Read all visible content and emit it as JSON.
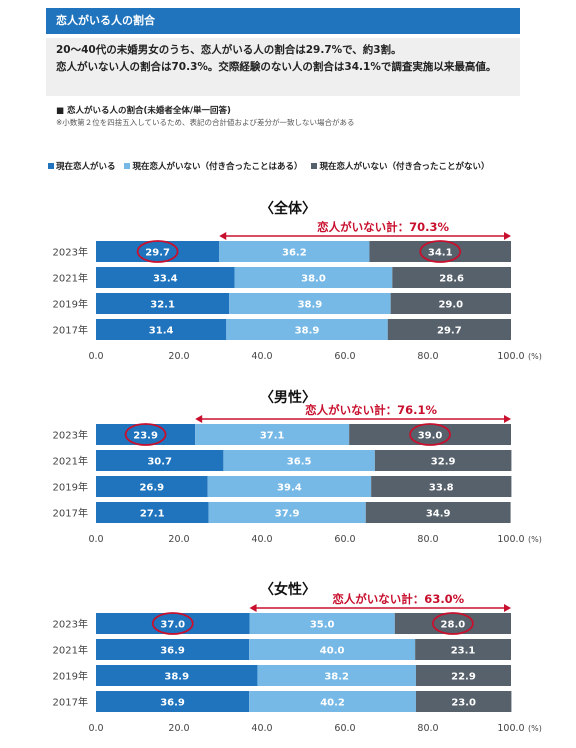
{
  "header": {
    "title": "恋人がいる人の割合"
  },
  "summary": {
    "line1": "20～40代の未婚男女のうち、恋人がいる人の割合は29.7%で、約3割。",
    "line2": "恋人がいない人の割合は70.3%。交際経験のない人の割合は34.1%で調査実施以来最高値。"
  },
  "chart_caption": "■ 恋人がいる人の割合(未婚者全体/単一回答)",
  "chart_note": "※小数第２位を四捨五入しているため、表記の合計値および差分が一致しない場合がある",
  "legend": [
    {
      "label": "現在恋人がいる",
      "color": "#1f74bd"
    },
    {
      "label": "現在恋人がいない（付き合ったことはある）",
      "color": "#77b9e6"
    },
    {
      "label": "現在恋人がいない（付き合ったことがない）",
      "color": "#56616b"
    }
  ],
  "colors": {
    "annotation": "#c8102e",
    "bar_label": "#ffffff"
  },
  "chart_data": [
    {
      "type": "bar",
      "orientation": "horizontal",
      "stacked": true,
      "title": "〈全体〉",
      "annotation": "恋人がいない計：70.3%",
      "categories": [
        "2023年",
        "2021年",
        "2019年",
        "2017年"
      ],
      "series": [
        {
          "name": "現在恋人がいる",
          "values": [
            29.7,
            33.4,
            32.1,
            31.4
          ]
        },
        {
          "name": "現在恋人がいない（付き合ったことはある）",
          "values": [
            36.2,
            38.0,
            38.9,
            38.9
          ]
        },
        {
          "name": "現在恋人がいない（付き合ったことがない）",
          "values": [
            34.1,
            28.6,
            29.0,
            29.7
          ]
        }
      ],
      "xlim": [
        0,
        100
      ],
      "xticks": [
        "0.0",
        "20.0",
        "40.0",
        "60.0",
        "80.0",
        "100.0"
      ],
      "xunit": "(%)",
      "highlighted": [
        "29.7",
        "34.1"
      ]
    },
    {
      "type": "bar",
      "orientation": "horizontal",
      "stacked": true,
      "title": "〈男性〉",
      "annotation": "恋人がいない計：76.1%",
      "categories": [
        "2023年",
        "2021年",
        "2019年",
        "2017年"
      ],
      "series": [
        {
          "name": "現在恋人がいる",
          "values": [
            23.9,
            30.7,
            26.9,
            27.1
          ]
        },
        {
          "name": "現在恋人がいない（付き合ったことはある）",
          "values": [
            37.1,
            36.5,
            39.4,
            37.9
          ]
        },
        {
          "name": "現在恋人がいない（付き合ったことがない）",
          "values": [
            39.0,
            32.9,
            33.8,
            34.9
          ]
        }
      ],
      "xlim": [
        0,
        100
      ],
      "xticks": [
        "0.0",
        "20.0",
        "40.0",
        "60.0",
        "80.0",
        "100.0"
      ],
      "xunit": "(%)",
      "highlighted": [
        "23.9",
        "39.0"
      ]
    },
    {
      "type": "bar",
      "orientation": "horizontal",
      "stacked": true,
      "title": "〈女性〉",
      "annotation": "恋人がいない計：63.0%",
      "categories": [
        "2023年",
        "2021年",
        "2019年",
        "2017年"
      ],
      "series": [
        {
          "name": "現在恋人がいる",
          "values": [
            37.0,
            36.9,
            38.9,
            36.9
          ]
        },
        {
          "name": "現在恋人がいない（付き合ったことはある）",
          "values": [
            35.0,
            40.0,
            38.2,
            40.2
          ]
        },
        {
          "name": "現在恋人がいない（付き合ったことがない）",
          "values": [
            28.0,
            23.1,
            22.9,
            23.0
          ]
        }
      ],
      "xlim": [
        0,
        100
      ],
      "xticks": [
        "0.0",
        "20.0",
        "40.0",
        "60.0",
        "80.0",
        "100.0"
      ],
      "xunit": "(%)",
      "highlighted": [
        "37.0",
        "28.0"
      ]
    }
  ]
}
